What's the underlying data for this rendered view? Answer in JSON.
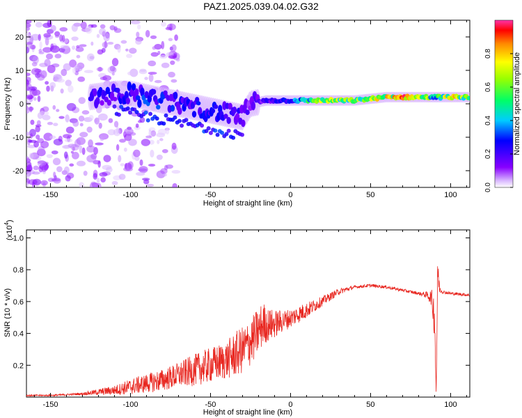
{
  "title": "PAZ1.2025.039.04.02.G32",
  "chart_data": [
    {
      "type": "heatmap",
      "xlabel": "Height of straight line (km)",
      "ylabel": "Frequency (Hz)",
      "xlim": [
        -165,
        112
      ],
      "ylim": [
        -25,
        25
      ],
      "x_ticks": [
        "-150",
        "-100",
        "-50",
        "0",
        "50",
        "100"
      ],
      "y_ticks": [
        "20",
        "10",
        "0",
        "-10",
        "-20"
      ],
      "colorbar": {
        "label": "Normalized spectral amplitude",
        "range": [
          0,
          1
        ],
        "ticks": [
          "0.0",
          "0.2",
          "0.4",
          "0.6",
          "0.8"
        ]
      },
      "ridge": [
        {
          "x": -125,
          "y": 2,
          "amp": 0.25
        },
        {
          "x": -110,
          "y": 3,
          "amp": 0.3
        },
        {
          "x": -100,
          "y": 3,
          "amp": 0.3
        },
        {
          "x": -90,
          "y": 2,
          "amp": 0.35
        },
        {
          "x": -80,
          "y": 1,
          "amp": 0.35
        },
        {
          "x": -70,
          "y": 0,
          "amp": 0.3
        },
        {
          "x": -60,
          "y": -1,
          "amp": 0.3
        },
        {
          "x": -50,
          "y": -2,
          "amp": 0.3
        },
        {
          "x": -40,
          "y": -3,
          "amp": 0.3
        },
        {
          "x": -30,
          "y": -4,
          "amp": 0.25
        },
        {
          "x": -25,
          "y": 0,
          "amp": 0.2
        },
        {
          "x": -15,
          "y": 1,
          "amp": 0.25
        },
        {
          "x": -5,
          "y": 1,
          "amp": 0.3
        },
        {
          "x": 5,
          "y": 1,
          "amp": 0.45
        },
        {
          "x": 20,
          "y": 1,
          "amp": 0.8
        },
        {
          "x": 40,
          "y": 1,
          "amp": 0.7
        },
        {
          "x": 60,
          "y": 2,
          "amp": 0.85
        },
        {
          "x": 80,
          "y": 2,
          "amp": 1.0
        },
        {
          "x": 90,
          "y": 2,
          "amp": 0.5
        },
        {
          "x": 100,
          "y": 2,
          "amp": 0.9
        },
        {
          "x": 112,
          "y": 2,
          "amp": 0.6
        }
      ]
    },
    {
      "type": "line",
      "xlabel": "Height of straight line (km)",
      "ylabel": "SNR (10 * v/v)",
      "y_multiplier_label": "(x10",
      "y_multiplier_exp": "4",
      "y_multiplier_close": ")",
      "xlim": [
        -165,
        112
      ],
      "ylim": [
        0,
        1.05
      ],
      "x_ticks": [
        "-150",
        "-100",
        "-50",
        "0",
        "50",
        "100"
      ],
      "y_ticks": [
        "0.2",
        "0.4",
        "0.6",
        "0.8",
        "1.0"
      ],
      "color": "#e8261f",
      "series": [
        {
          "x": [
            -165,
            -150,
            -140,
            -130,
            -120,
            -110,
            -100,
            -90,
            -80,
            -70,
            -60,
            -50,
            -40,
            -35,
            -30,
            -25,
            -20,
            -17,
            -15,
            -10,
            -5,
            0,
            10,
            20,
            30,
            40,
            50,
            60,
            70,
            80,
            85,
            88,
            90,
            91,
            92,
            93,
            95,
            100,
            112
          ],
          "values": [
            0.01,
            0.01,
            0.015,
            0.02,
            0.03,
            0.04,
            0.06,
            0.08,
            0.1,
            0.13,
            0.16,
            0.19,
            0.22,
            0.25,
            0.28,
            0.33,
            0.4,
            0.45,
            0.44,
            0.45,
            0.47,
            0.49,
            0.54,
            0.6,
            0.66,
            0.69,
            0.7,
            0.69,
            0.67,
            0.65,
            0.64,
            0.62,
            0.5,
            0.02,
            0.8,
            0.68,
            0.66,
            0.65,
            0.64
          ],
          "noise": [
            0.005,
            0.005,
            0.006,
            0.008,
            0.02,
            0.03,
            0.05,
            0.06,
            0.07,
            0.08,
            0.1,
            0.11,
            0.12,
            0.14,
            0.15,
            0.15,
            0.15,
            0.14,
            0.11,
            0.09,
            0.07,
            0.06,
            0.05,
            0.03,
            0.02,
            0.01,
            0.01,
            0.01,
            0.01,
            0.01,
            0.02,
            0.05,
            0.15,
            0.02,
            0.15,
            0.03,
            0.01,
            0.01,
            0.01
          ]
        }
      ]
    }
  ]
}
